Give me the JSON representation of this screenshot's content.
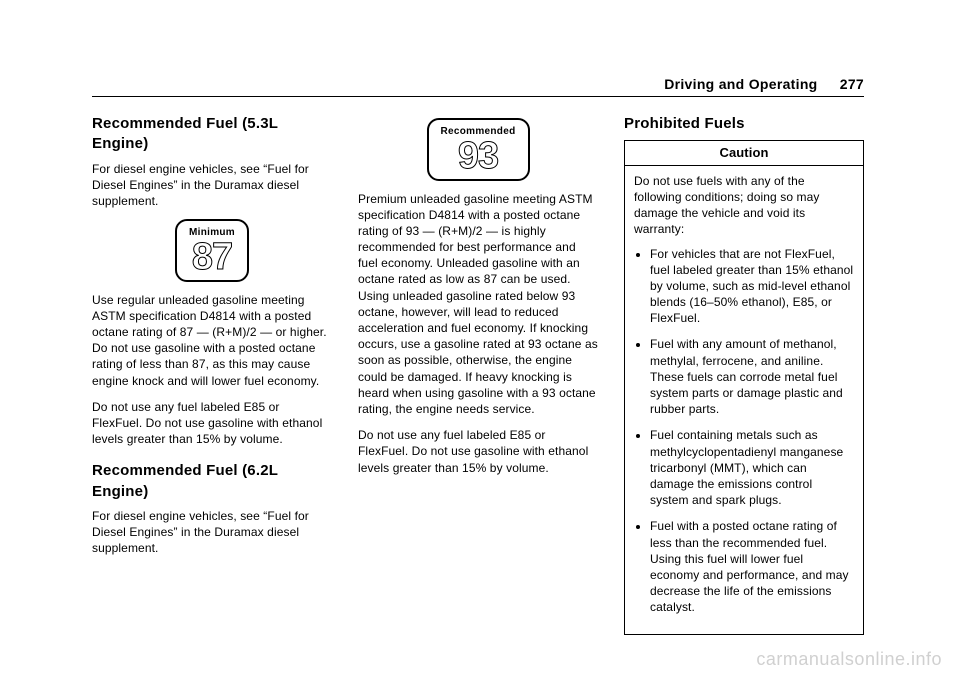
{
  "page": {
    "running_head_section": "Driving and Operating",
    "page_number": "277"
  },
  "col1": {
    "h_53": "Recommended Fuel (5.3L Engine)",
    "p_53_diesel": "For diesel engine vehicles, see “Fuel for Diesel Engines” in the Duramax diesel supplement.",
    "badge87_label": "Minimum",
    "badge87_value": "87",
    "p_53_use": "Use regular unleaded gasoline meeting ASTM specification D4814 with a posted octane rating of 87 — (R+M)/2 — or higher. Do not use gasoline with a posted octane rating of less than 87, as this may cause engine knock and will lower fuel economy.",
    "p_53_e85": "Do not use any fuel labeled E85 or FlexFuel. Do not use gasoline with ethanol levels greater than 15% by volume.",
    "h_62": "Recommended Fuel (6.2L Engine)",
    "p_62_diesel": "For diesel engine vehicles, see “Fuel for Diesel Engines” in the Duramax diesel supplement."
  },
  "col2": {
    "badge93_label": "Recommended",
    "badge93_value": "93",
    "p_62_use": "Premium unleaded gasoline meeting ASTM specification D4814 with a posted octane rating of 93 — (R+M)/2 — is highly recommended for best performance and fuel economy. Unleaded gasoline with an octane rated as low as 87 can be used. Using unleaded gasoline rated below 93 octane, however, will lead to reduced acceleration and fuel economy. If knocking occurs, use a gasoline rated at 93 octane as soon as possible, otherwise, the engine could be damaged. If heavy knocking is heard when using gasoline with a 93 octane rating, the engine needs service.",
    "p_62_e85": "Do not use any fuel labeled E85 or FlexFuel. Do not use gasoline with ethanol levels greater than 15% by volume."
  },
  "col3": {
    "h_prohibited": "Prohibited Fuels",
    "caution_head": "Caution",
    "caution_intro": "Do not use fuels with any of the following conditions; doing so may damage the vehicle and void its warranty:",
    "caution_items": {
      "i0": "For vehicles that are not FlexFuel, fuel labeled greater than 15% ethanol by volume, such as mid-level ethanol blends (16–50% ethanol), E85, or FlexFuel.",
      "i1": "Fuel with any amount of methanol, methylal, ferrocene, and aniline. These fuels can corrode metal fuel system parts or damage plastic and rubber parts.",
      "i2": "Fuel containing metals such as methylcyclopentadienyl manganese tricarbonyl (MMT), which can damage the emissions control system and spark plugs.",
      "i3": "Fuel with a posted octane rating of less than the recommended fuel. Using this fuel will lower fuel economy and performance, and may decrease the life of the emissions catalyst."
    }
  },
  "watermark": "carmanualsonline.info"
}
